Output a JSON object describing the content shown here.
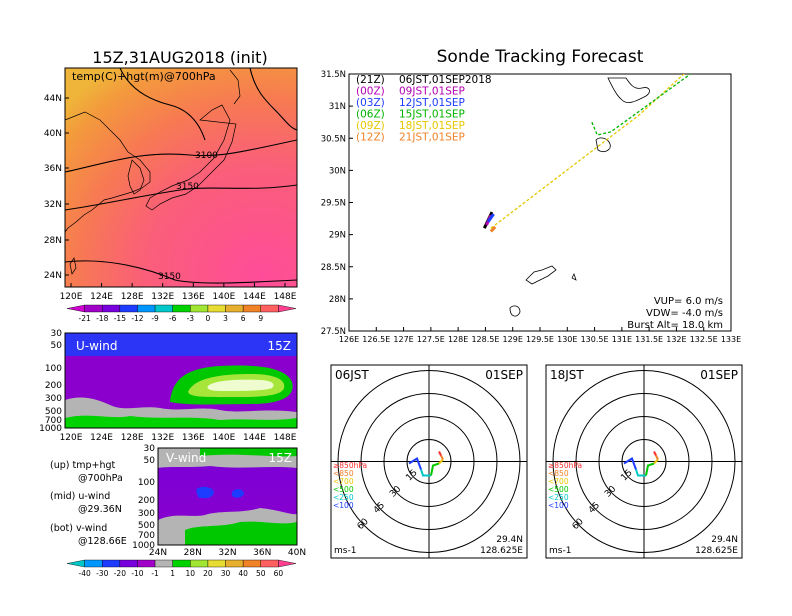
{
  "left": {
    "title": "15Z,31AUG2018 (init)",
    "map": {
      "label": "temp(C)+hgt(m)@700hPa",
      "lat_ticks": [
        "44N",
        "40N",
        "36N",
        "32N",
        "28N",
        "24N"
      ],
      "lon_ticks": [
        "120E",
        "124E",
        "128E",
        "132E",
        "136E",
        "140E",
        "144E",
        "148E"
      ],
      "contour_labels": [
        "3100",
        "3150",
        "3150"
      ]
    },
    "temp_colorbar": {
      "ticks": [
        "-21",
        "-18",
        "-15",
        "-12",
        "-9",
        "-6",
        "-3",
        "0",
        "3",
        "6",
        "9"
      ],
      "colors": [
        "#d000d0",
        "#a000c8",
        "#7800dc",
        "#1e3cff",
        "#0096ff",
        "#00c8c8",
        "#00d200",
        "#a0e632",
        "#e6dc32",
        "#e6af2d",
        "#f08228",
        "#ff6060",
        "#ff4090"
      ]
    },
    "uwind": {
      "label": "U-wind",
      "time": "15Z",
      "p_ticks": [
        "30",
        "50",
        "100",
        "200",
        "300",
        "500",
        "700",
        "1000"
      ],
      "lon_ticks": [
        "120E",
        "124E",
        "128E",
        "132E",
        "136E",
        "140E",
        "144E",
        "148E"
      ]
    },
    "vwind": {
      "label": "V-wind",
      "time": "15Z",
      "p_ticks": [
        "30",
        "50",
        "100",
        "200",
        "300",
        "500",
        "700",
        "1000"
      ],
      "lat_ticks": [
        "24N",
        "28N",
        "32N",
        "36N",
        "40N"
      ]
    },
    "wind_colorbar": {
      "ticks": [
        "-40",
        "-30",
        "-20",
        "-10",
        "-1",
        "1",
        "10",
        "20",
        "30",
        "40",
        "50",
        "60"
      ],
      "colors": [
        "#00c8c8",
        "#0096ff",
        "#1e3cff",
        "#7800dc",
        "#a000c8",
        "#b4b4b4",
        "#00d200",
        "#a0e632",
        "#e6dc32",
        "#e6af2d",
        "#f08228",
        "#ff6060",
        "#ff4090"
      ]
    },
    "legend": {
      "up_1": "(up) tmp+hgt",
      "up_2": "@700hPa",
      "mid_1": "(mid) u-wind",
      "mid_2": "@29.36N",
      "bot_1": "(bot) v-wind",
      "bot_2": "@128.66E"
    }
  },
  "tracking": {
    "title": "Sonde Tracking Forecast",
    "lat_ticks": [
      "31.5N",
      "31N",
      "30.5N",
      "30N",
      "29.5N",
      "29N",
      "28.5N",
      "28N",
      "27.5N"
    ],
    "lon_ticks": [
      "126E",
      "126.5E",
      "127E",
      "127.5E",
      "128E",
      "128.5E",
      "129E",
      "129.5E",
      "130E",
      "130.5E",
      "131E",
      "131.5E",
      "132E",
      "132.5E",
      "133E"
    ],
    "legend": [
      {
        "code": "(21Z)",
        "time": "06JST,01SEP2018",
        "color": "#000000"
      },
      {
        "code": "(00Z)",
        "time": "09JST,01SEP",
        "color": "#b400b4"
      },
      {
        "code": "(03Z)",
        "time": "12JST,01SEP",
        "color": "#1e3cff"
      },
      {
        "code": "(06Z)",
        "time": "15JST,01SEP",
        "color": "#00b400"
      },
      {
        "code": "(09Z)",
        "time": "18JST,01SEP",
        "color": "#e6c800"
      },
      {
        "code": "(12Z)",
        "time": "21JST,01SEP",
        "color": "#f08228"
      }
    ],
    "params": {
      "vup": "VUP= 6.0 m/s",
      "vdw": "VDW= -4.0 m/s",
      "burst": "Burst Alt= 18.0 km"
    }
  },
  "hodographs": [
    {
      "time": "06JST",
      "date": "01SEP",
      "ring_labels": [
        "15",
        "30",
        "45",
        "60"
      ],
      "pressure_labels": [
        {
          "text": "≥850hPa",
          "color": "#ff3030"
        },
        {
          "text": "<850",
          "color": "#f08228"
        },
        {
          "text": "<700",
          "color": "#e6c800"
        },
        {
          "text": "<500",
          "color": "#00c800"
        },
        {
          "text": "<250",
          "color": "#00c8c8"
        },
        {
          "text": "<100",
          "color": "#1e3cff"
        }
      ],
      "unit": "ms-1",
      "lat": "29.4N",
      "lon": "128.625E"
    },
    {
      "time": "18JST",
      "date": "01SEP",
      "ring_labels": [
        "15",
        "30",
        "45",
        "60"
      ],
      "pressure_labels": [
        {
          "text": "≥850hPa",
          "color": "#ff3030"
        },
        {
          "text": "<850",
          "color": "#f08228"
        },
        {
          "text": "<700",
          "color": "#e6c800"
        },
        {
          "text": "<500",
          "color": "#00c800"
        },
        {
          "text": "<250",
          "color": "#00c8c8"
        },
        {
          "text": "<100",
          "color": "#1e3cff"
        }
      ],
      "unit": "ms-1",
      "lat": "29.4N",
      "lon": "128.625E"
    }
  ],
  "chart_data": [
    {
      "type": "heatmap",
      "title": "15Z,31AUG2018 (init)",
      "annotation": "temp(C)+hgt(m)@700hPa",
      "xlim": [
        120,
        150
      ],
      "ylim": [
        22,
        48
      ],
      "contours": [
        3100,
        3150,
        3150
      ]
    },
    {
      "type": "line",
      "title": "Sonde Tracking Forecast",
      "xlim": [
        126,
        133
      ],
      "ylim": [
        27.5,
        31.5
      ],
      "series": [
        {
          "name": "(09Z) 18JST,01SEP",
          "x": [
            128.6,
            131.3,
            132.2
          ],
          "y": [
            29.1,
            30.85,
            31.55
          ]
        },
        {
          "name": "(06Z) 15JST,01SEP",
          "x": [
            130.45,
            130.55,
            130.8,
            132.5
          ],
          "y": [
            30.75,
            30.55,
            30.6,
            31.65
          ]
        }
      ],
      "burst_points": [
        {
          "name": "(21Z) 06JST,01SEP2018",
          "x": [
            128.48,
            128.62
          ],
          "y": [
            29.1,
            29.35
          ]
        },
        {
          "name": "(00Z) 09JST,01SEP",
          "x": [
            128.52,
            128.6
          ],
          "y": [
            29.15,
            29.3
          ]
        },
        {
          "name": "(03Z) 12JST,01SEP",
          "x": [
            128.55,
            128.65
          ],
          "y": [
            29.2,
            29.32
          ]
        },
        {
          "name": "(12Z) 21JST,01SEP",
          "x": [
            128.6,
            128.68
          ],
          "y": [
            29.05,
            29.12
          ]
        }
      ]
    }
  ]
}
